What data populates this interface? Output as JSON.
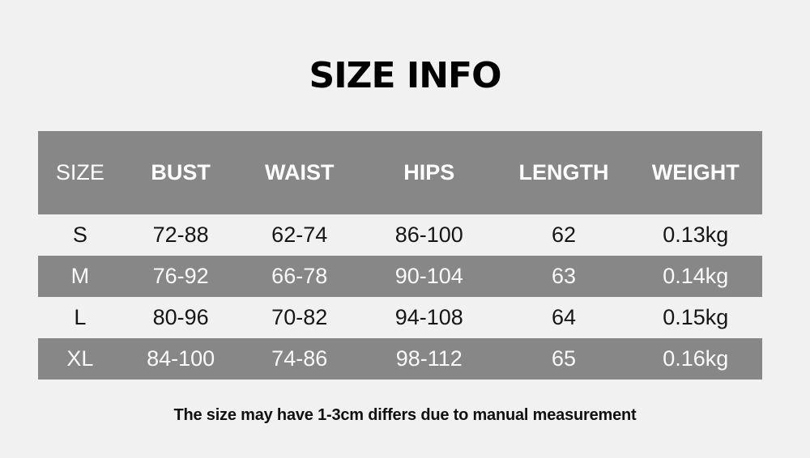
{
  "page": {
    "title": "SIZE INFO",
    "footnote": "The size may have 1-3cm differs due to manual measurement"
  },
  "chart_data": {
    "type": "table",
    "title": "SIZE INFO",
    "columns": [
      "SIZE",
      "BUST",
      "WAIST",
      "HIPS",
      "LENGTH",
      "WEIGHT"
    ],
    "rows": [
      [
        "S",
        "72-88",
        "62-74",
        "86-100",
        "62",
        "0.13kg"
      ],
      [
        "M",
        "76-92",
        "66-78",
        "90-104",
        "63",
        "0.14kg"
      ],
      [
        "L",
        "80-96",
        "70-82",
        "94-108",
        "64",
        "0.15kg"
      ],
      [
        "XL",
        "84-100",
        "74-86",
        "98-112",
        "65",
        "0.16kg"
      ]
    ],
    "footnote": "The size may have 1-3cm differs due to manual measurement",
    "layout": {
      "header_style": "gray band, white text",
      "row_striping": "light, gray alternating",
      "grid": "off"
    }
  },
  "colors": {
    "page_bg": "#f1f1f2",
    "band_gray": "#878787",
    "header_text": "#ffffff",
    "body_text": "#161616",
    "title_text": "#000000"
  }
}
